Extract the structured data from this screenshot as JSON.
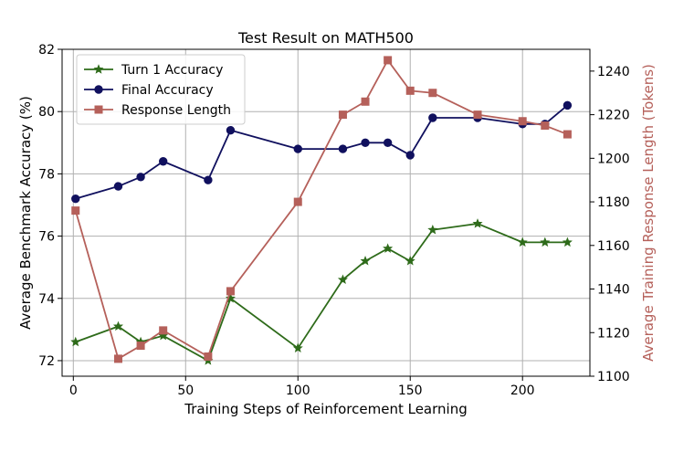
{
  "chart_data": {
    "type": "line",
    "title": "Test Result on MATH500",
    "xlabel": "Training Steps of Reinforcement Learning",
    "ylabel_left": "Average Benchmark Accuracy (%)",
    "ylabel_right": "Average Training Response Length (Tokens)",
    "xlim": [
      -5,
      230
    ],
    "ylim_left": [
      71.5,
      82
    ],
    "ylim_right": [
      1100,
      1250
    ],
    "x_ticks": [
      0,
      50,
      100,
      150,
      200
    ],
    "y_ticks_left": [
      72,
      74,
      76,
      78,
      80,
      82
    ],
    "y_ticks_right": [
      1100,
      1120,
      1140,
      1160,
      1180,
      1200,
      1220,
      1240
    ],
    "grid": true,
    "legend_position": "upper-left",
    "series": [
      {
        "name": "Turn 1 Accuracy",
        "axis": "left",
        "color": "#2e6b1a",
        "marker": "star",
        "x": [
          1,
          20,
          30,
          40,
          60,
          70,
          100,
          120,
          130,
          140,
          150,
          160,
          180,
          200,
          210,
          220
        ],
        "values": [
          72.6,
          73.1,
          72.6,
          72.8,
          72.0,
          74.0,
          72.4,
          74.6,
          75.2,
          75.6,
          75.2,
          76.2,
          76.4,
          75.8,
          75.8,
          75.8
        ]
      },
      {
        "name": "Final Accuracy",
        "axis": "left",
        "color": "#10105e",
        "marker": "circle",
        "x": [
          1,
          20,
          30,
          40,
          60,
          70,
          100,
          120,
          130,
          140,
          150,
          160,
          180,
          200,
          210,
          220
        ],
        "values": [
          77.2,
          77.6,
          77.9,
          78.4,
          77.8,
          79.4,
          78.8,
          78.8,
          79.0,
          79.0,
          78.6,
          79.8,
          79.8,
          79.6,
          79.6,
          80.2
        ]
      },
      {
        "name": "Response Length",
        "axis": "right",
        "color": "#b5605a",
        "marker": "square",
        "x": [
          1,
          20,
          30,
          40,
          60,
          70,
          100,
          120,
          130,
          140,
          150,
          160,
          180,
          200,
          210,
          220
        ],
        "values": [
          1176,
          1108,
          1114,
          1121,
          1109,
          1139,
          1180,
          1220,
          1226,
          1245,
          1231,
          1230,
          1220,
          1217,
          1215,
          1211
        ]
      }
    ]
  }
}
